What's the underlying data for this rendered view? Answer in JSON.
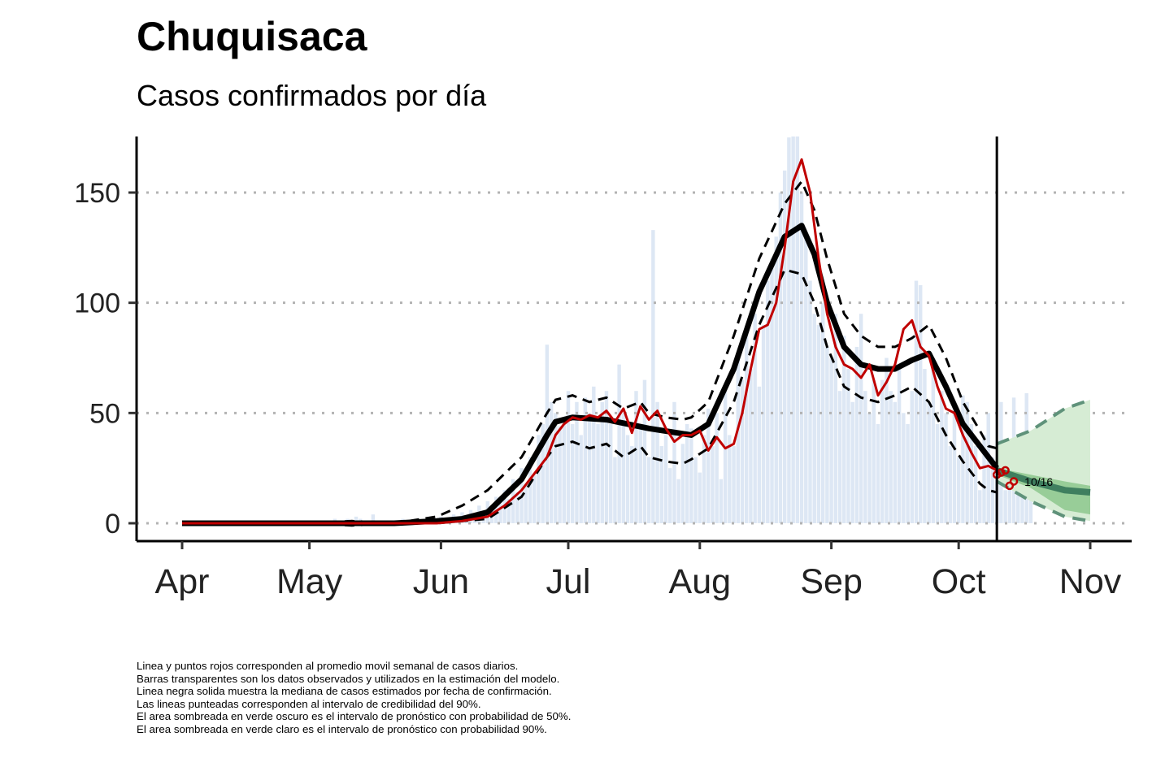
{
  "chart_data": {
    "type": "line",
    "title": "Chuquisaca",
    "subtitle": "Casos confirmados por día",
    "ylim": [
      -8,
      175
    ],
    "yticks": [
      0,
      50,
      100,
      150
    ],
    "xlim_day": [
      -10,
      223
    ],
    "xticks": [
      {
        "label": "Apr",
        "day": 0
      },
      {
        "label": "May",
        "day": 30
      },
      {
        "label": "Jun",
        "day": 61
      },
      {
        "label": "Jul",
        "day": 91
      },
      {
        "label": "Aug",
        "day": 122
      },
      {
        "label": "Sep",
        "day": 153
      },
      {
        "label": "Oct",
        "day": 183
      },
      {
        "label": "Nov",
        "day": 214
      }
    ],
    "x_start_date": "2020-04-01",
    "forecast_start_day": 192,
    "forecast_label": "10/16",
    "colors": {
      "bars": "#dde7f4",
      "median": "#000000",
      "rolling_avg": "#c00000",
      "forecast_90": "#d6ecd4",
      "forecast_50": "#98cd98",
      "forecast_median": "#3f7f5f",
      "forecast_dash": "#5f927a",
      "grid": "#b3b3b3"
    },
    "bars": {
      "start_day": 0,
      "values": [
        0,
        0,
        0,
        0,
        0,
        0,
        0,
        0,
        0,
        0,
        0,
        0,
        0,
        0,
        0,
        0,
        0,
        0,
        0,
        0,
        0,
        0,
        0,
        0,
        0,
        0,
        0,
        0,
        0,
        0,
        0,
        0,
        0,
        1,
        0,
        0,
        2,
        1,
        0,
        2,
        1,
        3,
        2,
        0,
        1,
        4,
        1,
        0,
        1,
        0,
        0,
        1,
        2,
        1,
        0,
        2,
        1,
        0,
        1,
        0,
        1,
        3,
        2,
        0,
        4,
        2,
        5,
        1,
        6,
        3,
        8,
        5,
        10,
        7,
        12,
        9,
        15,
        11,
        20,
        14,
        25,
        18,
        30,
        22,
        40,
        45,
        81,
        55,
        50,
        44,
        48,
        60,
        45,
        55,
        40,
        57,
        50,
        62,
        45,
        55,
        60,
        45,
        30,
        72,
        50,
        40,
        35,
        60,
        45,
        65,
        30,
        133,
        55,
        35,
        40,
        25,
        55,
        20,
        36,
        45,
        43,
        30,
        23,
        40,
        52,
        35,
        50,
        20,
        60,
        40,
        35,
        75,
        65,
        89,
        70,
        95,
        62,
        90,
        110,
        120,
        130,
        150,
        160,
        175,
        180,
        177,
        150,
        130,
        110,
        95,
        90,
        100,
        80,
        75,
        95,
        60,
        85,
        70,
        55,
        80,
        95,
        60,
        50,
        65,
        45,
        65,
        75,
        60,
        55,
        70,
        50,
        45,
        60,
        110,
        108,
        70,
        55,
        75,
        45,
        60,
        50,
        35,
        50,
        30,
        58,
        55,
        45,
        35,
        15,
        40,
        50,
        30,
        20,
        55,
        15,
        35,
        57,
        15,
        20,
        59,
        15
      ]
    },
    "median": {
      "x": [
        0,
        20,
        30,
        40,
        50,
        60,
        66,
        72,
        80,
        86,
        88,
        92,
        100,
        110,
        120,
        124,
        130,
        136,
        142,
        146,
        149,
        152,
        156,
        160,
        164,
        168,
        172,
        176,
        180,
        184,
        188,
        192
      ],
      "y": [
        0,
        0,
        0,
        0,
        0,
        1,
        2,
        5,
        20,
        40,
        46,
        48,
        47,
        43,
        40,
        45,
        70,
        105,
        130,
        135,
        122,
        100,
        80,
        72,
        70,
        70,
        74,
        77,
        62,
        45,
        35,
        25
      ]
    },
    "ci_upper": {
      "x": [
        0,
        20,
        30,
        40,
        50,
        60,
        66,
        72,
        80,
        86,
        88,
        92,
        96,
        100,
        104,
        108,
        110,
        114,
        118,
        120,
        124,
        130,
        136,
        142,
        146,
        149,
        152,
        156,
        160,
        164,
        168,
        172,
        176,
        180,
        184,
        188,
        190,
        192
      ],
      "y": [
        0,
        0,
        0,
        1,
        0,
        3,
        8,
        15,
        30,
        50,
        56,
        58,
        55,
        57,
        52,
        55,
        50,
        48,
        47,
        48,
        55,
        85,
        120,
        145,
        155,
        142,
        120,
        95,
        85,
        80,
        80,
        84,
        90,
        75,
        55,
        42,
        35,
        34
      ]
    },
    "ci_lower": {
      "x": [
        0,
        20,
        30,
        40,
        50,
        60,
        66,
        72,
        80,
        86,
        88,
        92,
        96,
        100,
        104,
        108,
        110,
        114,
        118,
        120,
        124,
        130,
        136,
        142,
        146,
        149,
        152,
        156,
        160,
        164,
        168,
        172,
        176,
        180,
        184,
        188,
        190,
        192
      ],
      "y": [
        0,
        0,
        0,
        -1,
        0,
        0,
        1,
        2,
        12,
        30,
        35,
        37,
        34,
        36,
        30,
        35,
        30,
        28,
        27,
        29,
        34,
        55,
        90,
        115,
        113,
        100,
        80,
        62,
        57,
        55,
        58,
        62,
        55,
        40,
        28,
        18,
        15,
        14
      ]
    },
    "rolling_avg": {
      "x": [
        0,
        30,
        40,
        50,
        60,
        66,
        72,
        76,
        80,
        84,
        86,
        88,
        90,
        92,
        94,
        96,
        98,
        100,
        102,
        104,
        106,
        108,
        110,
        112,
        114,
        116,
        118,
        120,
        122,
        124,
        126,
        128,
        130,
        132,
        134,
        136,
        138,
        140,
        142,
        144,
        146,
        148,
        150,
        152,
        154,
        156,
        158,
        160,
        162,
        164,
        166,
        168,
        170,
        172,
        174,
        176,
        178,
        180,
        182,
        184,
        186,
        188,
        190,
        192
      ],
      "y": [
        0,
        0,
        0,
        0,
        0,
        1,
        3,
        8,
        15,
        25,
        30,
        40,
        45,
        48,
        47,
        49,
        48,
        51,
        46,
        52,
        41,
        53,
        47,
        51,
        43,
        37,
        40,
        40,
        42,
        33,
        39,
        34,
        36,
        50,
        70,
        88,
        90,
        100,
        125,
        155,
        165,
        150,
        120,
        95,
        80,
        72,
        70,
        66,
        72,
        58,
        64,
        72,
        88,
        92,
        80,
        76,
        62,
        52,
        50,
        40,
        32,
        25,
        26,
        24
      ]
    },
    "recent_points": {
      "x": [
        192,
        193,
        194,
        195,
        196
      ],
      "y": [
        22,
        23,
        24,
        17,
        19
      ]
    },
    "forecast": {
      "x": [
        192,
        200,
        208,
        214
      ],
      "p05": [
        19,
        10,
        3,
        1
      ],
      "p25": [
        22,
        16,
        6,
        4
      ],
      "median": [
        24,
        19,
        15,
        14
      ],
      "p75": [
        25,
        22,
        19,
        17
      ],
      "p95": [
        36,
        42,
        52,
        56
      ]
    },
    "captions": [
      "Linea y puntos rojos corresponden al promedio movil semanal de casos diarios.",
      "Barras transparentes son los datos observados y utilizados en la estimación del modelo.",
      "Linea negra solida muestra la mediana de casos estimados por fecha de confirmación.",
      "Las lineas punteadas corresponden al intervalo de credibilidad del 90%.",
      "El area sombreada en verde oscuro es el intervalo de pronóstico con probabilidad de 50%.",
      "El area sombreada en verde claro es el intervalo de pronóstico con probabilidad 90%."
    ]
  }
}
